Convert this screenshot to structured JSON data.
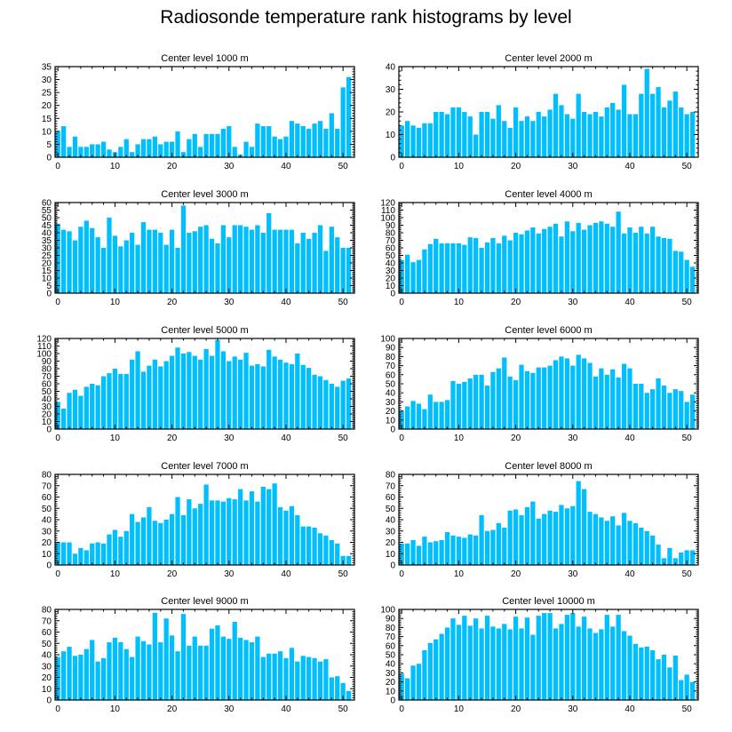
{
  "title": "Radiosonde temperature rank histograms by level",
  "bar_color": "#00bfff",
  "chart_data": [
    {
      "type": "bar",
      "title": "Center level 1000 m",
      "x": [
        0,
        1,
        2,
        3,
        4,
        5,
        6,
        7,
        8,
        9,
        10,
        11,
        12,
        13,
        14,
        15,
        16,
        17,
        18,
        19,
        20,
        21,
        22,
        23,
        24,
        25,
        26,
        27,
        28,
        29,
        30,
        31,
        32,
        33,
        34,
        35,
        36,
        37,
        38,
        39,
        40,
        41,
        42,
        43,
        44,
        45,
        46,
        47,
        48,
        49,
        50,
        51
      ],
      "values": [
        10,
        12,
        4,
        8,
        4,
        4,
        5,
        5,
        6,
        3,
        2,
        4,
        7,
        2,
        5,
        7,
        7,
        8,
        5,
        6,
        6,
        10,
        2,
        7,
        9,
        4,
        9,
        9,
        9,
        11,
        12,
        4,
        1,
        6,
        4,
        13,
        12,
        12,
        8,
        7,
        8,
        14,
        13,
        12,
        11,
        13,
        14,
        11,
        17,
        11,
        27,
        31
      ],
      "xlim": [
        -0.5,
        52
      ],
      "ylim": [
        0,
        35
      ],
      "xticks": [
        0,
        10,
        20,
        30,
        40,
        50
      ],
      "yticks": [
        0,
        5,
        10,
        15,
        20,
        25,
        30,
        35
      ]
    },
    {
      "type": "bar",
      "title": "Center level 2000 m",
      "x": [
        0,
        1,
        2,
        3,
        4,
        5,
        6,
        7,
        8,
        9,
        10,
        11,
        12,
        13,
        14,
        15,
        16,
        17,
        18,
        19,
        20,
        21,
        22,
        23,
        24,
        25,
        26,
        27,
        28,
        29,
        30,
        31,
        32,
        33,
        34,
        35,
        36,
        37,
        38,
        39,
        40,
        41,
        42,
        43,
        44,
        45,
        46,
        47,
        48,
        49,
        50,
        51
      ],
      "values": [
        14,
        16,
        14,
        13,
        15,
        15,
        20,
        20,
        19,
        22,
        22,
        20,
        18,
        10,
        20,
        20,
        17,
        23,
        16,
        13,
        22,
        16,
        18,
        16,
        20,
        18,
        21,
        28,
        23,
        19,
        17,
        28,
        20,
        19,
        20,
        18,
        22,
        24,
        21,
        32,
        19,
        19,
        28,
        39,
        28,
        31,
        22,
        25,
        29,
        22,
        19,
        20
      ],
      "xlim": [
        -0.5,
        52
      ],
      "ylim": [
        0,
        40
      ],
      "xticks": [
        0,
        10,
        20,
        30,
        40,
        50
      ],
      "yticks": [
        0,
        10,
        20,
        30,
        40
      ]
    },
    {
      "type": "bar",
      "title": "Center level 3000 m",
      "x": [
        0,
        1,
        2,
        3,
        4,
        5,
        6,
        7,
        8,
        9,
        10,
        11,
        12,
        13,
        14,
        15,
        16,
        17,
        18,
        19,
        20,
        21,
        22,
        23,
        24,
        25,
        26,
        27,
        28,
        29,
        30,
        31,
        32,
        33,
        34,
        35,
        36,
        37,
        38,
        39,
        40,
        41,
        42,
        43,
        44,
        45,
        46,
        47,
        48,
        49,
        50,
        51
      ],
      "values": [
        46,
        42,
        41,
        35,
        44,
        48,
        43,
        37,
        30,
        50,
        38,
        31,
        35,
        40,
        32,
        47,
        42,
        42,
        40,
        32,
        42,
        30,
        58,
        40,
        41,
        44,
        45,
        36,
        33,
        45,
        37,
        45,
        45,
        44,
        42,
        45,
        40,
        53,
        42,
        42,
        42,
        42,
        33,
        40,
        36,
        40,
        45,
        28,
        44,
        37,
        30,
        30
      ],
      "xlim": [
        -0.5,
        52
      ],
      "ylim": [
        0,
        60
      ],
      "xticks": [
        0,
        10,
        20,
        30,
        40,
        50
      ],
      "yticks": [
        0,
        5,
        10,
        15,
        20,
        25,
        30,
        35,
        40,
        45,
        50,
        55,
        60
      ]
    },
    {
      "type": "bar",
      "title": "Center level 4000 m",
      "x": [
        0,
        1,
        2,
        3,
        4,
        5,
        6,
        7,
        8,
        9,
        10,
        11,
        12,
        13,
        14,
        15,
        16,
        17,
        18,
        19,
        20,
        21,
        22,
        23,
        24,
        25,
        26,
        27,
        28,
        29,
        30,
        31,
        32,
        33,
        34,
        35,
        36,
        37,
        38,
        39,
        40,
        41,
        42,
        43,
        44,
        45,
        46,
        47,
        48,
        49,
        50,
        51
      ],
      "values": [
        44,
        51,
        41,
        44,
        58,
        65,
        72,
        66,
        66,
        66,
        66,
        64,
        74,
        73,
        60,
        67,
        73,
        66,
        76,
        70,
        80,
        78,
        83,
        87,
        79,
        85,
        88,
        92,
        75,
        95,
        82,
        93,
        84,
        90,
        93,
        95,
        92,
        88,
        108,
        79,
        87,
        80,
        88,
        79,
        88,
        75,
        73,
        72,
        56,
        55,
        44,
        35
      ],
      "xlim": [
        -0.5,
        52
      ],
      "ylim": [
        0,
        120
      ],
      "xticks": [
        0,
        10,
        20,
        30,
        40,
        50
      ],
      "yticks": [
        0,
        10,
        20,
        30,
        40,
        50,
        60,
        70,
        80,
        90,
        100,
        110,
        120
      ]
    },
    {
      "type": "bar",
      "title": "Center level 5000 m",
      "x": [
        0,
        1,
        2,
        3,
        4,
        5,
        6,
        7,
        8,
        9,
        10,
        11,
        12,
        13,
        14,
        15,
        16,
        17,
        18,
        19,
        20,
        21,
        22,
        23,
        24,
        25,
        26,
        27,
        28,
        29,
        30,
        31,
        32,
        33,
        34,
        35,
        36,
        37,
        38,
        39,
        40,
        41,
        42,
        43,
        44,
        45,
        46,
        47,
        48,
        49,
        50,
        51
      ],
      "values": [
        36,
        27,
        48,
        52,
        44,
        56,
        60,
        58,
        70,
        74,
        80,
        73,
        73,
        92,
        103,
        76,
        84,
        92,
        83,
        90,
        97,
        108,
        100,
        102,
        97,
        92,
        106,
        97,
        118,
        103,
        90,
        96,
        92,
        101,
        84,
        86,
        83,
        105,
        96,
        92,
        88,
        86,
        100,
        85,
        81,
        72,
        70,
        65,
        60,
        56,
        64,
        67
      ],
      "xlim": [
        -0.5,
        52
      ],
      "ylim": [
        0,
        120
      ],
      "xticks": [
        0,
        10,
        20,
        30,
        40,
        50
      ],
      "yticks": [
        0,
        10,
        20,
        30,
        40,
        50,
        60,
        70,
        80,
        90,
        100,
        110,
        120
      ]
    },
    {
      "type": "bar",
      "title": "Center level 6000 m",
      "x": [
        0,
        1,
        2,
        3,
        4,
        5,
        6,
        7,
        8,
        9,
        10,
        11,
        12,
        13,
        14,
        15,
        16,
        17,
        18,
        19,
        20,
        21,
        22,
        23,
        24,
        25,
        26,
        27,
        28,
        29,
        30,
        31,
        32,
        33,
        34,
        35,
        36,
        37,
        38,
        39,
        40,
        41,
        42,
        43,
        44,
        45,
        46,
        47,
        48,
        49,
        50,
        51
      ],
      "values": [
        20,
        25,
        31,
        28,
        22,
        38,
        30,
        30,
        32,
        53,
        50,
        52,
        56,
        60,
        60,
        48,
        63,
        67,
        79,
        58,
        54,
        71,
        64,
        62,
        68,
        68,
        70,
        76,
        80,
        78,
        70,
        82,
        78,
        73,
        58,
        67,
        60,
        66,
        57,
        72,
        67,
        50,
        50,
        40,
        44,
        56,
        48,
        40,
        44,
        42,
        30,
        38
      ],
      "xlim": [
        -0.5,
        52
      ],
      "ylim": [
        0,
        100
      ],
      "xticks": [
        0,
        10,
        20,
        30,
        40,
        50
      ],
      "yticks": [
        0,
        10,
        20,
        30,
        40,
        50,
        60,
        70,
        80,
        90,
        100
      ]
    },
    {
      "type": "bar",
      "title": "Center level 7000 m",
      "x": [
        0,
        1,
        2,
        3,
        4,
        5,
        6,
        7,
        8,
        9,
        10,
        11,
        12,
        13,
        14,
        15,
        16,
        17,
        18,
        19,
        20,
        21,
        22,
        23,
        24,
        25,
        26,
        27,
        28,
        29,
        30,
        31,
        32,
        33,
        34,
        35,
        36,
        37,
        38,
        39,
        40,
        41,
        42,
        43,
        44,
        45,
        46,
        47,
        48,
        49,
        50,
        51
      ],
      "values": [
        20,
        20,
        20,
        10,
        15,
        13,
        19,
        20,
        19,
        27,
        31,
        25,
        30,
        45,
        38,
        42,
        51,
        39,
        37,
        40,
        45,
        60,
        44,
        58,
        50,
        54,
        71,
        57,
        57,
        56,
        59,
        58,
        67,
        57,
        65,
        56,
        69,
        67,
        72,
        51,
        48,
        52,
        44,
        34,
        34,
        33,
        28,
        26,
        22,
        19,
        8,
        8
      ],
      "xlim": [
        -0.5,
        52
      ],
      "ylim": [
        0,
        80
      ],
      "xticks": [
        0,
        10,
        20,
        30,
        40,
        50
      ],
      "yticks": [
        0,
        10,
        20,
        30,
        40,
        50,
        60,
        70,
        80
      ]
    },
    {
      "type": "bar",
      "title": "Center level 8000 m",
      "x": [
        0,
        1,
        2,
        3,
        4,
        5,
        6,
        7,
        8,
        9,
        10,
        11,
        12,
        13,
        14,
        15,
        16,
        17,
        18,
        19,
        20,
        21,
        22,
        23,
        24,
        25,
        26,
        27,
        28,
        29,
        30,
        31,
        32,
        33,
        34,
        35,
        36,
        37,
        38,
        39,
        40,
        41,
        42,
        43,
        44,
        45,
        46,
        47,
        48,
        49,
        50,
        51
      ],
      "values": [
        19,
        19,
        22,
        17,
        25,
        20,
        21,
        22,
        29,
        26,
        25,
        24,
        27,
        26,
        44,
        30,
        31,
        37,
        33,
        48,
        49,
        44,
        51,
        56,
        41,
        45,
        48,
        47,
        53,
        50,
        52,
        74,
        67,
        47,
        45,
        42,
        39,
        43,
        35,
        46,
        39,
        37,
        33,
        30,
        26,
        18,
        6,
        15,
        6,
        11,
        13,
        13
      ],
      "xlim": [
        -0.5,
        52
      ],
      "ylim": [
        0,
        80
      ],
      "xticks": [
        0,
        10,
        20,
        30,
        40,
        50
      ],
      "yticks": [
        0,
        10,
        20,
        30,
        40,
        50,
        60,
        70,
        80
      ]
    },
    {
      "type": "bar",
      "title": "Center level 9000 m",
      "x": [
        0,
        1,
        2,
        3,
        4,
        5,
        6,
        7,
        8,
        9,
        10,
        11,
        12,
        13,
        14,
        15,
        16,
        17,
        18,
        19,
        20,
        21,
        22,
        23,
        24,
        25,
        26,
        27,
        28,
        29,
        30,
        31,
        32,
        33,
        34,
        35,
        36,
        37,
        38,
        39,
        40,
        41,
        42,
        43,
        44,
        45,
        46,
        47,
        48,
        49,
        50,
        51
      ],
      "values": [
        38,
        43,
        47,
        39,
        40,
        45,
        53,
        34,
        37,
        51,
        55,
        51,
        45,
        38,
        56,
        52,
        49,
        77,
        51,
        72,
        57,
        43,
        76,
        48,
        56,
        48,
        48,
        63,
        66,
        56,
        54,
        69,
        55,
        53,
        51,
        56,
        38,
        41,
        41,
        43,
        37,
        46,
        34,
        39,
        38,
        37,
        34,
        36,
        20,
        21,
        15,
        8
      ],
      "xlim": [
        -0.5,
        52
      ],
      "ylim": [
        0,
        80
      ],
      "xticks": [
        0,
        10,
        20,
        30,
        40,
        50
      ],
      "yticks": [
        0,
        10,
        20,
        30,
        40,
        50,
        60,
        70,
        80
      ]
    },
    {
      "type": "bar",
      "title": "Center level 10000 m",
      "x": [
        0,
        1,
        2,
        3,
        4,
        5,
        6,
        7,
        8,
        9,
        10,
        11,
        12,
        13,
        14,
        15,
        16,
        17,
        18,
        19,
        20,
        21,
        22,
        23,
        24,
        25,
        26,
        27,
        28,
        29,
        30,
        31,
        32,
        33,
        34,
        35,
        36,
        37,
        38,
        39,
        40,
        41,
        42,
        43,
        44,
        45,
        46,
        47,
        48,
        49,
        50,
        51
      ],
      "values": [
        29,
        24,
        38,
        40,
        55,
        63,
        67,
        73,
        80,
        90,
        83,
        93,
        82,
        90,
        79,
        93,
        81,
        79,
        84,
        78,
        92,
        79,
        91,
        72,
        93,
        96,
        96,
        79,
        84,
        94,
        96,
        81,
        92,
        79,
        74,
        78,
        94,
        81,
        94,
        76,
        71,
        62,
        58,
        59,
        55,
        45,
        50,
        36,
        49,
        22,
        28,
        20
      ],
      "xlim": [
        -0.5,
        52
      ],
      "ylim": [
        0,
        100
      ],
      "xticks": [
        0,
        10,
        20,
        30,
        40,
        50
      ],
      "yticks": [
        0,
        10,
        20,
        30,
        40,
        50,
        60,
        70,
        80,
        90,
        100
      ]
    }
  ]
}
